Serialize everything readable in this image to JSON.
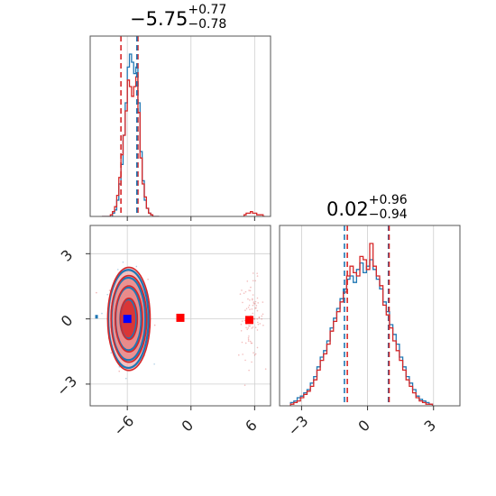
{
  "colors": {
    "blue": "#1f77b4",
    "red": "#d62728",
    "red_fill_light": "#f2b6b6",
    "red_fill_mid": "#e98a8a",
    "red_fill_dark": "#d62728",
    "blue_fill": "#2f6fb0",
    "marker_blue": "#0000ff",
    "marker_red": "#ff0000",
    "grid": "#cfcfcf"
  },
  "titles": {
    "p1": {
      "value": "−5.75",
      "plus": "+0.77",
      "minus": "−0.78"
    },
    "p2": {
      "value": "0.02",
      "plus": "+0.96",
      "minus": "−0.94"
    }
  },
  "chart_data": [
    {
      "type": "histogram",
      "panel": "marginal-parameter-1",
      "x_range": [
        -9.5,
        7.5
      ],
      "x_ticks": [
        -6,
        0,
        6
      ],
      "quantile_lines": {
        "red": [
          -6.6,
          -5.0
        ],
        "blue": [
          -5.1
        ]
      },
      "series": [
        {
          "color": "blue",
          "bin_start": -8.4,
          "bin_width": 0.2,
          "values": [
            0,
            0,
            0,
            0,
            0,
            2,
            4,
            10,
            20,
            32,
            50,
            70,
            92,
            100,
            95,
            88,
            92,
            70,
            40,
            22,
            10,
            5,
            2,
            1,
            0,
            0,
            0
          ]
        },
        {
          "color": "red",
          "bin_start": -8.4,
          "bin_width": 0.2,
          "values": [
            0,
            0,
            0,
            0,
            1,
            3,
            6,
            13,
            24,
            38,
            50,
            65,
            84,
            80,
            74,
            80,
            86,
            64,
            36,
            20,
            12,
            5,
            2,
            1,
            0,
            0,
            0
          ]
        },
        {
          "color": "red",
          "bin_start": 5.0,
          "bin_width": 0.2,
          "values": [
            1,
            2,
            2,
            3,
            2,
            2,
            1,
            1,
            1,
            0
          ]
        }
      ]
    },
    {
      "type": "histogram",
      "panel": "marginal-parameter-2",
      "x_range": [
        -4,
        4.2
      ],
      "x_ticks": [
        -3,
        0,
        3
      ],
      "quantile_lines": {
        "red": [
          -0.92,
          0.98
        ],
        "blue": [
          -1.05,
          0.95
        ]
      },
      "series": [
        {
          "color": "blue",
          "bin_start": -3.5,
          "bin_width": 0.15,
          "values": [
            2,
            3,
            5,
            6,
            8,
            10,
            14,
            18,
            24,
            30,
            34,
            40,
            48,
            54,
            60,
            66,
            72,
            78,
            80,
            76,
            84,
            88,
            82,
            86,
            90,
            84,
            78,
            72,
            64,
            58,
            50,
            44,
            38,
            30,
            24,
            18,
            14,
            10,
            6,
            4,
            3,
            2,
            1
          ]
        },
        {
          "color": "red",
          "bin_start": -3.5,
          "bin_width": 0.15,
          "values": [
            1,
            2,
            3,
            5,
            7,
            9,
            12,
            16,
            22,
            28,
            32,
            38,
            46,
            52,
            58,
            64,
            70,
            80,
            86,
            82,
            80,
            92,
            90,
            84,
            100,
            86,
            80,
            74,
            62,
            56,
            48,
            40,
            34,
            28,
            22,
            16,
            12,
            8,
            5,
            3,
            2,
            1,
            1
          ]
        }
      ]
    },
    {
      "type": "scatter",
      "panel": "joint-parameter-1-vs-parameter-2",
      "x_range": [
        -9.5,
        7.5
      ],
      "y_range": [
        -4,
        4.3
      ],
      "x_ticks": [
        -6,
        0,
        6
      ],
      "y_ticks": [
        -3,
        0,
        3
      ],
      "contour_center": [
        -5.85,
        0.0
      ],
      "contour_sd": [
        0.8,
        0.95
      ],
      "contour_levels_sigma": [
        1.0,
        1.6,
        2.1,
        2.5
      ],
      "markers": [
        {
          "label": "",
          "color": "marker_blue",
          "x": -6.0,
          "y": 0.0
        },
        {
          "label": "",
          "color": "marker_red",
          "x": -1.0,
          "y": 0.05
        },
        {
          "label": "",
          "color": "marker_red",
          "x": 5.5,
          "y": -0.05
        }
      ],
      "secondary_cluster": {
        "x": 5.7,
        "y": 0.0,
        "spread": [
          0.6,
          0.9
        ]
      }
    }
  ]
}
